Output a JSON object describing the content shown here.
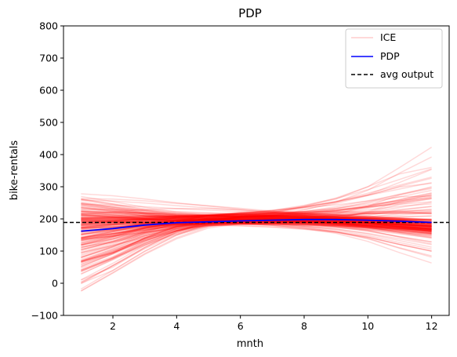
{
  "chart_data": {
    "type": "line",
    "title": "PDP",
    "xlabel": "mnth",
    "ylabel": "bike-rentals",
    "xlim": [
      0.45,
      12.55
    ],
    "ylim": [
      -100,
      800
    ],
    "x_ticks": [
      2,
      4,
      6,
      8,
      10,
      12
    ],
    "y_ticks": [
      -100,
      0,
      100,
      200,
      300,
      400,
      500,
      600,
      700,
      800
    ],
    "x": [
      1,
      2,
      3,
      4,
      5,
      6,
      7,
      8,
      9,
      10,
      11,
      12
    ],
    "grid": false,
    "legend_position": "top-right",
    "legend": [
      "ICE",
      "PDP",
      "avg output"
    ],
    "series": [
      {
        "name": "PDP",
        "color": "#0000ff",
        "values": [
          162,
          170,
          181,
          188,
          191,
          194,
          196,
          198,
          198,
          196,
          193,
          189
        ]
      },
      {
        "name": "avg output",
        "color": "#000000",
        "style": "dashed",
        "value": 189
      },
      {
        "name": "ICE",
        "color": "#ff0000",
        "opacity": 0.15,
        "n_lines": 200,
        "representative_values": [
          [
            -18,
            40,
            100,
            150,
            185,
            200,
            205,
            200,
            190,
            180,
            170,
            160
          ],
          [
            10,
            50,
            110,
            160,
            190,
            205,
            210,
            205,
            200,
            190,
            180,
            175
          ],
          [
            40,
            80,
            130,
            170,
            195,
            205,
            210,
            210,
            205,
            200,
            195,
            190
          ],
          [
            60,
            95,
            140,
            175,
            195,
            205,
            208,
            208,
            205,
            200,
            195,
            185
          ],
          [
            80,
            110,
            150,
            180,
            197,
            205,
            208,
            205,
            200,
            195,
            190,
            185
          ],
          [
            100,
            130,
            160,
            185,
            198,
            204,
            206,
            204,
            200,
            195,
            190,
            185
          ],
          [
            120,
            145,
            170,
            190,
            200,
            205,
            205,
            203,
            198,
            190,
            185,
            180
          ],
          [
            140,
            160,
            180,
            192,
            198,
            200,
            200,
            198,
            194,
            188,
            183,
            178
          ],
          [
            160,
            172,
            185,
            194,
            199,
            200,
            199,
            196,
            192,
            187,
            182,
            176
          ],
          [
            180,
            185,
            190,
            195,
            197,
            198,
            197,
            195,
            192,
            188,
            183,
            178
          ],
          [
            200,
            198,
            197,
            196,
            196,
            196,
            195,
            193,
            190,
            186,
            182,
            176
          ],
          [
            220,
            212,
            205,
            200,
            198,
            197,
            196,
            194,
            190,
            185,
            178,
            170
          ],
          [
            240,
            228,
            215,
            205,
            200,
            197,
            195,
            192,
            188,
            182,
            174,
            165
          ],
          [
            262,
            246,
            228,
            213,
            204,
            199,
            196,
            193,
            188,
            180,
            170,
            158
          ],
          [
            278,
            272,
            262,
            250,
            240,
            230,
            220,
            210,
            200,
            188,
            175,
            160
          ],
          [
            195,
            198,
            200,
            202,
            203,
            205,
            210,
            215,
            225,
            240,
            260,
            280
          ],
          [
            190,
            192,
            196,
            200,
            205,
            210,
            220,
            235,
            255,
            280,
            305,
            330
          ],
          [
            185,
            188,
            192,
            196,
            200,
            208,
            220,
            240,
            265,
            300,
            340,
            360
          ],
          [
            180,
            182,
            186,
            190,
            196,
            205,
            218,
            238,
            262,
            300,
            360,
            423
          ],
          [
            200,
            200,
            198,
            196,
            193,
            190,
            185,
            175,
            160,
            140,
            110,
            85
          ],
          [
            210,
            206,
            200,
            195,
            190,
            186,
            180,
            170,
            155,
            130,
            95,
            63
          ],
          [
            190,
            190,
            191,
            192,
            193,
            194,
            196,
            200,
            215,
            240,
            275,
            300
          ],
          [
            170,
            175,
            183,
            190,
            195,
            199,
            201,
            202,
            201,
            199,
            196,
            192
          ],
          [
            150,
            160,
            172,
            184,
            193,
            198,
            201,
            202,
            200,
            196,
            190,
            182
          ]
        ]
      }
    ]
  }
}
